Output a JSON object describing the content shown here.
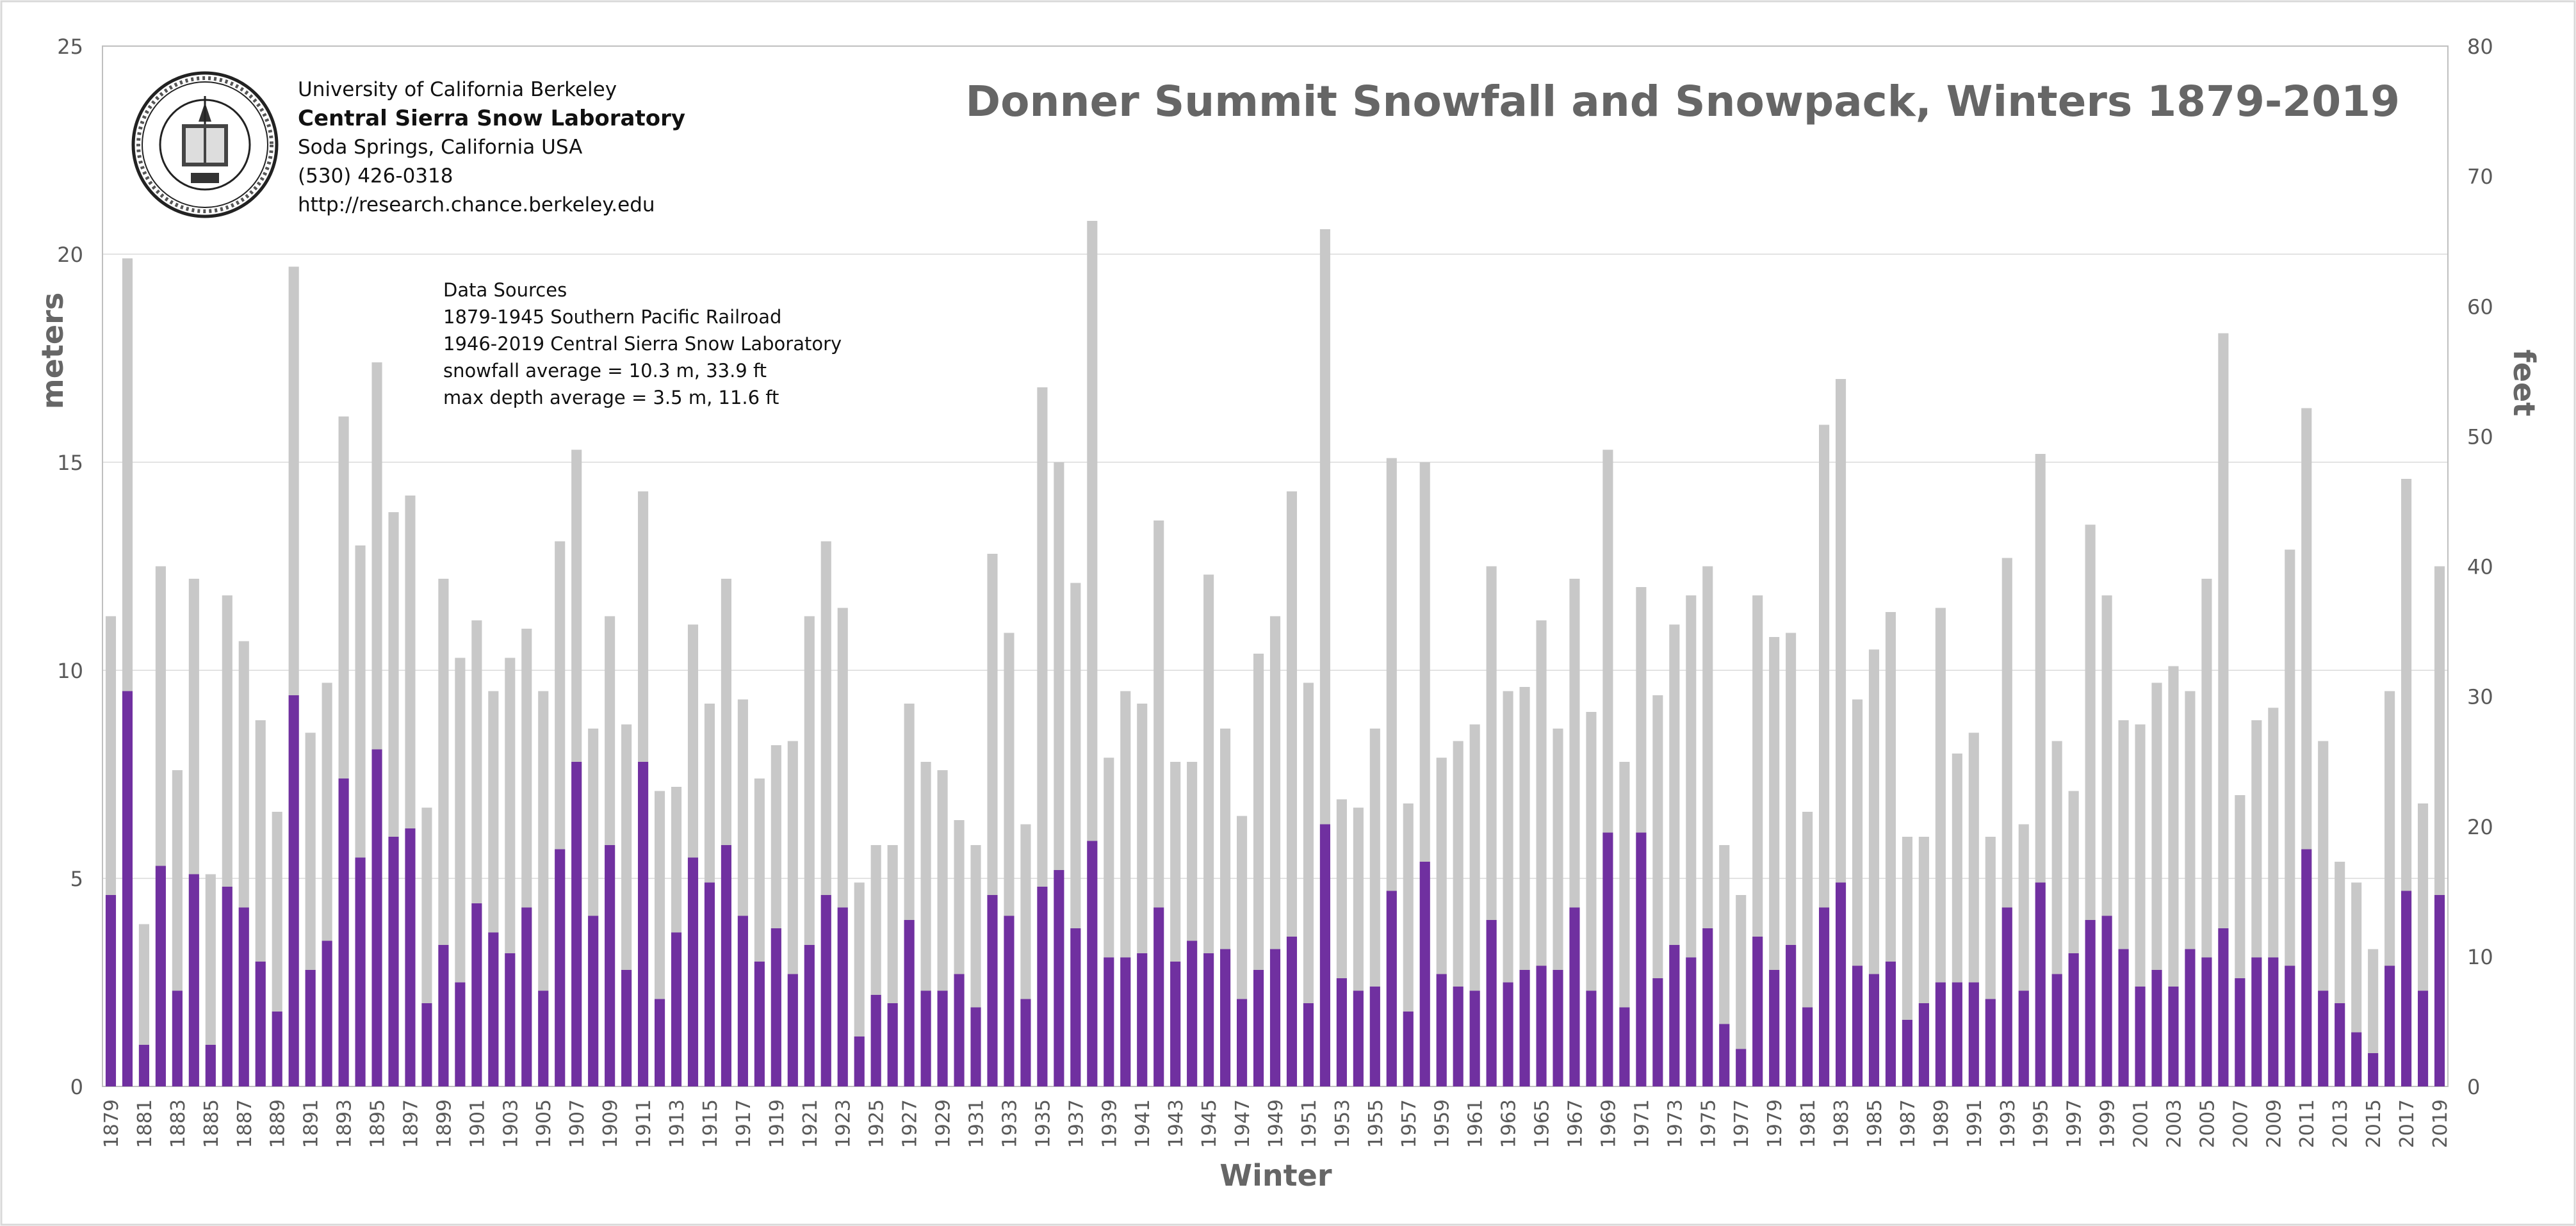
{
  "chart_data": {
    "type": "bar",
    "title": "Donner Summit Snowfall and Snowpack, Winters 1879-2019",
    "xlabel": "Winter",
    "ylabel": "meters",
    "ylabel_right": "feet",
    "ylim": [
      0,
      25
    ],
    "ylim_right": [
      0,
      80
    ],
    "yticks": [
      0,
      5,
      10,
      15,
      20,
      25
    ],
    "yticks_right": [
      0,
      10,
      20,
      30,
      40,
      50,
      60,
      70,
      80
    ],
    "grid": true,
    "x": [
      1879,
      1880,
      1881,
      1882,
      1883,
      1884,
      1885,
      1886,
      1887,
      1888,
      1889,
      1890,
      1891,
      1892,
      1893,
      1894,
      1895,
      1896,
      1897,
      1898,
      1899,
      1900,
      1901,
      1902,
      1903,
      1904,
      1905,
      1906,
      1907,
      1908,
      1909,
      1910,
      1911,
      1912,
      1913,
      1914,
      1915,
      1916,
      1917,
      1918,
      1919,
      1920,
      1921,
      1922,
      1923,
      1924,
      1925,
      1926,
      1927,
      1928,
      1929,
      1930,
      1931,
      1932,
      1933,
      1934,
      1935,
      1936,
      1937,
      1938,
      1939,
      1940,
      1941,
      1942,
      1943,
      1944,
      1945,
      1946,
      1947,
      1948,
      1949,
      1950,
      1951,
      1952,
      1953,
      1954,
      1955,
      1956,
      1957,
      1958,
      1959,
      1960,
      1961,
      1962,
      1963,
      1964,
      1965,
      1966,
      1967,
      1968,
      1969,
      1970,
      1971,
      1972,
      1973,
      1974,
      1975,
      1976,
      1977,
      1978,
      1979,
      1980,
      1981,
      1982,
      1983,
      1984,
      1985,
      1986,
      1987,
      1988,
      1989,
      1990,
      1991,
      1992,
      1993,
      1994,
      1995,
      1996,
      1997,
      1998,
      1999,
      2000,
      2001,
      2002,
      2003,
      2004,
      2005,
      2006,
      2007,
      2008,
      2009,
      2010,
      2011,
      2012,
      2013,
      2014,
      2015,
      2016,
      2017,
      2018,
      2019
    ],
    "series": [
      {
        "name": "snowfall",
        "color": "#c8c8c8",
        "values": [
          11.3,
          19.9,
          3.9,
          12.5,
          7.6,
          12.2,
          5.1,
          11.8,
          10.7,
          8.8,
          6.6,
          19.7,
          8.5,
          9.7,
          16.1,
          13.0,
          17.4,
          13.8,
          14.2,
          6.7,
          12.2,
          10.3,
          11.2,
          9.5,
          10.3,
          11.0,
          9.5,
          13.1,
          15.3,
          8.6,
          11.3,
          8.7,
          14.3,
          7.1,
          7.2,
          11.1,
          9.2,
          12.2,
          9.3,
          7.4,
          8.2,
          8.3,
          11.3,
          13.1,
          11.5,
          4.9,
          5.8,
          5.8,
          9.2,
          7.8,
          7.6,
          6.4,
          5.8,
          12.8,
          10.9,
          6.3,
          16.8,
          15.0,
          12.1,
          20.8,
          7.9,
          9.5,
          9.2,
          13.6,
          7.8,
          7.8,
          12.3,
          8.6,
          6.5,
          10.4,
          11.3,
          14.3,
          9.7,
          20.6,
          6.9,
          6.7,
          8.6,
          15.1,
          6.8,
          15.0,
          7.9,
          8.3,
          8.7,
          12.5,
          9.5,
          9.6,
          11.2,
          8.6,
          12.2,
          9.0,
          15.3,
          7.8,
          12.0,
          9.4,
          11.1,
          11.8,
          12.5,
          5.8,
          4.6,
          11.8,
          10.8,
          10.9,
          6.6,
          15.9,
          17.0,
          9.3,
          10.5,
          11.4,
          6.0,
          6.0,
          11.5,
          8.0,
          8.5,
          6.0,
          12.7,
          6.3,
          15.2,
          8.3,
          7.1,
          13.5,
          11.8,
          8.8,
          8.7,
          9.7,
          10.1,
          9.5,
          12.2,
          18.1,
          7.0,
          8.8,
          9.1,
          12.9,
          16.3,
          8.3,
          5.4,
          4.9,
          3.3,
          9.5,
          14.6,
          6.8,
          12.5
        ]
      },
      {
        "name": "snowpack",
        "color": "#7030a0",
        "values": [
          4.6,
          9.5,
          1.0,
          5.3,
          2.3,
          5.1,
          1.0,
          4.8,
          4.3,
          3.0,
          1.8,
          9.4,
          2.8,
          3.5,
          7.4,
          5.5,
          8.1,
          6.0,
          6.2,
          2.0,
          3.4,
          2.5,
          4.4,
          3.7,
          3.2,
          4.3,
          2.3,
          5.7,
          7.8,
          4.1,
          5.8,
          2.8,
          7.8,
          2.1,
          3.7,
          5.5,
          4.9,
          5.8,
          4.1,
          3.0,
          3.8,
          2.7,
          3.4,
          4.6,
          4.3,
          1.2,
          2.2,
          2.0,
          4.0,
          2.3,
          2.3,
          2.7,
          1.9,
          4.6,
          4.1,
          2.1,
          4.8,
          5.2,
          3.8,
          5.9,
          3.1,
          3.1,
          3.2,
          4.3,
          3.0,
          3.5,
          3.2,
          3.3,
          2.1,
          2.8,
          3.3,
          3.6,
          2.0,
          6.3,
          2.6,
          2.3,
          2.4,
          4.7,
          1.8,
          5.4,
          2.7,
          2.4,
          2.3,
          4.0,
          2.5,
          2.8,
          2.9,
          2.8,
          4.3,
          2.3,
          6.1,
          1.9,
          6.1,
          2.6,
          3.4,
          3.1,
          3.8,
          1.5,
          0.9,
          3.6,
          2.8,
          3.4,
          1.9,
          4.3,
          4.9,
          2.9,
          2.7,
          3.0,
          1.6,
          2.0,
          2.5,
          2.5,
          2.5,
          2.1,
          4.3,
          2.3,
          4.9,
          2.7,
          3.2,
          4.0,
          4.1,
          3.3,
          2.4,
          2.8,
          2.4,
          3.3,
          3.1,
          3.8,
          2.6,
          3.1,
          3.1,
          2.9,
          5.7,
          2.3,
          2.0,
          1.3,
          0.8,
          2.9,
          4.7,
          2.3,
          4.6
        ]
      }
    ]
  },
  "logo": {
    "name": "university-seal",
    "line1": "University of California Berkeley",
    "line2": "Central Sierra Snow Laboratory",
    "line3": "Soda Springs, California USA",
    "line4": "(530) 426-0318",
    "line5": "http://research.chance.berkeley.edu"
  },
  "sources": {
    "line1": "Data Sources",
    "line2": "1879-1945 Southern Pacific Railroad",
    "line3": "1946-2019 Central Sierra Snow Laboratory",
    "line4": "snowfall average = 10.3 m, 33.9 ft",
    "line5": "max depth average = 3.5 m, 11.6 ft"
  }
}
